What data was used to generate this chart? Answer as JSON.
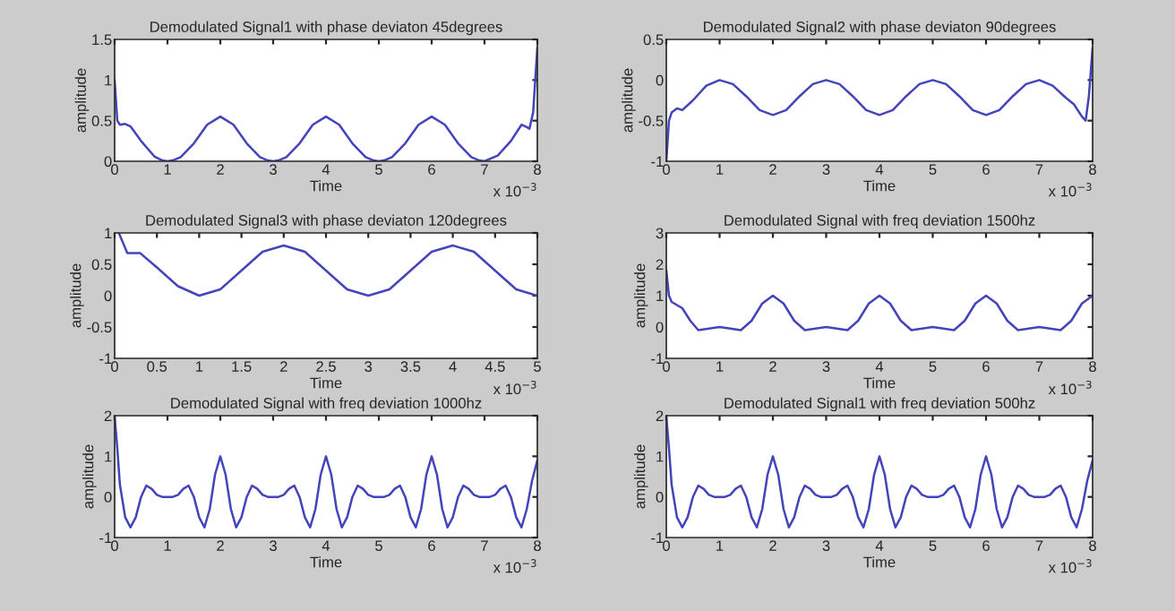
{
  "chart_data": [
    {
      "type": "line",
      "title": "Demodulated Signal1 with phase deviaton 45degrees",
      "xlabel": "Time",
      "ylabel": "amplitude",
      "xlim": [
        0,
        8
      ],
      "xticks": [
        0,
        1,
        2,
        3,
        4,
        5,
        6,
        7,
        8
      ],
      "ylim": [
        0,
        1.5
      ],
      "yticks": [
        0,
        0.5,
        1,
        1.5
      ],
      "annotations": [
        "x 10$^{−3}$"
      ],
      "grid": false,
      "legend": false,
      "series": [
        {
          "color": "#4444bb",
          "x": [
            0,
            0.05,
            0.1,
            0.2,
            0.3,
            0.5,
            0.75,
            0.9,
            1,
            1.1,
            1.25,
            1.5,
            1.75,
            2,
            2.25,
            2.5,
            2.75,
            2.9,
            3,
            3.1,
            3.25,
            3.5,
            3.75,
            4,
            4.25,
            4.5,
            4.75,
            4.9,
            5,
            5.1,
            5.25,
            5.5,
            5.75,
            6,
            6.25,
            6.5,
            6.75,
            6.9,
            7,
            7.25,
            7.5,
            7.7,
            7.8,
            7.85,
            7.92,
            8
          ],
          "values": [
            1.0,
            0.5,
            0.45,
            0.46,
            0.43,
            0.25,
            0.06,
            0.01,
            0,
            0.01,
            0.05,
            0.22,
            0.45,
            0.55,
            0.45,
            0.22,
            0.05,
            0.01,
            0,
            0.01,
            0.05,
            0.22,
            0.45,
            0.55,
            0.45,
            0.22,
            0.05,
            0.01,
            0,
            0.01,
            0.05,
            0.22,
            0.45,
            0.55,
            0.45,
            0.22,
            0.05,
            0.01,
            0,
            0.07,
            0.25,
            0.45,
            0.42,
            0.4,
            0.6,
            1.4
          ]
        }
      ]
    },
    {
      "type": "line",
      "title": "Demodulated Signal2 with phase deviaton 90degrees",
      "xlabel": "Time",
      "ylabel": "amplitude",
      "xlim": [
        0,
        8
      ],
      "xticks": [
        0,
        1,
        2,
        3,
        4,
        5,
        6,
        7,
        8
      ],
      "ylim": [
        -1,
        0.5
      ],
      "yticks": [
        -1,
        -0.5,
        0,
        0.5
      ],
      "annotations": [
        "x 10$^{−3}$"
      ],
      "grid": false,
      "legend": false,
      "series": [
        {
          "color": "#4444bb",
          "x": [
            0,
            0.05,
            0.1,
            0.2,
            0.3,
            0.5,
            0.75,
            1,
            1.25,
            1.5,
            1.75,
            2,
            2.25,
            2.5,
            2.75,
            3,
            3.25,
            3.5,
            3.75,
            4,
            4.25,
            4.5,
            4.75,
            5,
            5.25,
            5.5,
            5.75,
            6,
            6.25,
            6.5,
            6.75,
            7,
            7.25,
            7.5,
            7.65,
            7.8,
            7.87,
            7.93,
            8
          ],
          "values": [
            -1,
            -0.5,
            -0.4,
            -0.35,
            -0.37,
            -0.25,
            -0.07,
            0,
            -0.05,
            -0.2,
            -0.37,
            -0.43,
            -0.37,
            -0.2,
            -0.05,
            0,
            -0.05,
            -0.2,
            -0.37,
            -0.43,
            -0.37,
            -0.2,
            -0.05,
            0,
            -0.05,
            -0.2,
            -0.37,
            -0.43,
            -0.37,
            -0.2,
            -0.05,
            0,
            -0.07,
            -0.22,
            -0.3,
            -0.45,
            -0.5,
            -0.2,
            0.4
          ]
        }
      ]
    },
    {
      "type": "line",
      "title": "Demodulated Signal3 with phase deviaton 120degrees",
      "xlabel": "Time",
      "ylabel": "amplitude",
      "xlim": [
        0,
        5
      ],
      "xticks": [
        0,
        0.5,
        1,
        1.5,
        2,
        2.5,
        3,
        3.5,
        4,
        4.5,
        5
      ],
      "ylim": [
        -1,
        1
      ],
      "yticks": [
        -1,
        -0.5,
        0,
        0.5,
        1
      ],
      "annotations": [
        "x 10$^{−3}$"
      ],
      "grid": false,
      "legend": false,
      "series": [
        {
          "color": "#4444bb",
          "x": [
            0.05,
            0.15,
            0.3,
            0.5,
            0.75,
            1,
            1.25,
            1.5,
            1.75,
            2,
            2.25,
            2.5,
            2.75,
            3,
            3.25,
            3.5,
            3.75,
            4,
            4.25,
            4.5,
            4.75,
            5
          ],
          "values": [
            1,
            0.68,
            0.68,
            0.45,
            0.15,
            0,
            0.1,
            0.4,
            0.7,
            0.8,
            0.7,
            0.4,
            0.1,
            0,
            0.1,
            0.4,
            0.7,
            0.8,
            0.7,
            0.4,
            0.1,
            0
          ]
        }
      ]
    },
    {
      "type": "line",
      "title": "Demodulated Signal with freq deviation 1500hz",
      "xlabel": "Time",
      "ylabel": "amplitude",
      "xlim": [
        0,
        8
      ],
      "xticks": [
        0,
        1,
        2,
        3,
        4,
        5,
        6,
        7,
        8
      ],
      "ylim": [
        -1,
        3
      ],
      "yticks": [
        -1,
        0,
        1,
        2,
        3
      ],
      "annotations": [
        "x 10$^{−3}$"
      ],
      "grid": false,
      "legend": false,
      "series": [
        {
          "color": "#4444bb",
          "x": [
            0,
            0.05,
            0.1,
            0.3,
            0.45,
            0.6,
            0.8,
            1,
            1.2,
            1.4,
            1.6,
            1.8,
            2,
            2.2,
            2.4,
            2.6,
            2.8,
            3,
            3.2,
            3.4,
            3.6,
            3.8,
            4,
            4.2,
            4.4,
            4.6,
            4.8,
            5,
            5.2,
            5.4,
            5.6,
            5.8,
            6,
            6.2,
            6.4,
            6.6,
            6.8,
            7,
            7.2,
            7.4,
            7.6,
            7.8,
            8
          ],
          "values": [
            1.8,
            1.0,
            0.8,
            0.6,
            0.2,
            -0.1,
            -0.05,
            0,
            -0.05,
            -0.1,
            0.2,
            0.75,
            1,
            0.75,
            0.2,
            -0.1,
            -0.05,
            0,
            -0.05,
            -0.1,
            0.2,
            0.75,
            1,
            0.75,
            0.2,
            -0.1,
            -0.05,
            0,
            -0.05,
            -0.1,
            0.2,
            0.75,
            1,
            0.75,
            0.2,
            -0.1,
            -0.05,
            0,
            -0.05,
            -0.1,
            0.2,
            0.75,
            1
          ]
        }
      ]
    },
    {
      "type": "line",
      "title": "Demodulated Signal with freq deviation 1000hz",
      "xlabel": "Time",
      "ylabel": "amplitude",
      "xlim": [
        0,
        8
      ],
      "xticks": [
        0,
        1,
        2,
        3,
        4,
        5,
        6,
        7,
        8
      ],
      "ylim": [
        -1,
        2
      ],
      "yticks": [
        -1,
        0,
        1,
        2
      ],
      "annotations": [
        "x 10$^{−3}$"
      ],
      "grid": false,
      "legend": false,
      "series": [
        {
          "color": "#4444bb",
          "x": [
            0,
            0.05,
            0.1,
            0.2,
            0.3,
            0.4,
            0.5,
            0.6,
            0.7,
            0.8,
            0.9,
            1,
            1.1,
            1.2,
            1.3,
            1.4,
            1.5,
            1.6,
            1.7,
            1.8,
            1.9,
            2,
            2.1,
            2.2,
            2.3,
            2.4,
            2.5,
            2.6,
            2.7,
            2.8,
            2.9,
            3,
            3.1,
            3.2,
            3.3,
            3.4,
            3.5,
            3.6,
            3.7,
            3.8,
            3.9,
            4,
            4.1,
            4.2,
            4.3,
            4.4,
            4.5,
            4.6,
            4.7,
            4.8,
            4.9,
            5,
            5.1,
            5.2,
            5.3,
            5.4,
            5.5,
            5.6,
            5.7,
            5.8,
            5.9,
            6,
            6.1,
            6.2,
            6.3,
            6.4,
            6.5,
            6.6,
            6.7,
            6.8,
            6.9,
            7,
            7.1,
            7.2,
            7.3,
            7.4,
            7.5,
            7.6,
            7.7,
            7.8,
            7.9,
            8
          ],
          "values": [
            2,
            1.2,
            0.3,
            -0.5,
            -0.75,
            -0.5,
            0,
            0.28,
            0.2,
            0.05,
            0,
            0,
            0,
            0.05,
            0.2,
            0.28,
            0,
            -0.5,
            -0.75,
            -0.3,
            0.55,
            1,
            0.55,
            -0.3,
            -0.75,
            -0.5,
            0,
            0.28,
            0.2,
            0.05,
            0,
            0,
            0,
            0.05,
            0.2,
            0.28,
            0,
            -0.5,
            -0.75,
            -0.3,
            0.55,
            1,
            0.55,
            -0.3,
            -0.75,
            -0.5,
            0,
            0.28,
            0.2,
            0.05,
            0,
            0,
            0,
            0.05,
            0.2,
            0.28,
            0,
            -0.5,
            -0.75,
            -0.3,
            0.55,
            1,
            0.55,
            -0.3,
            -0.75,
            -0.5,
            0,
            0.28,
            0.2,
            0.05,
            0,
            0,
            0,
            0.05,
            0.2,
            0.28,
            0,
            -0.5,
            -0.75,
            -0.3,
            0.4,
            0.9
          ]
        }
      ]
    },
    {
      "type": "line",
      "title": "Demodulated Signal1 with freq deviation 500hz",
      "xlabel": "Time",
      "ylabel": "amplitude",
      "xlim": [
        0,
        8
      ],
      "xticks": [
        0,
        1,
        2,
        3,
        4,
        5,
        6,
        7,
        8
      ],
      "ylim": [
        -1,
        2
      ],
      "yticks": [
        -1,
        0,
        1,
        2
      ],
      "annotations": [
        "x 10$^{−3}$"
      ],
      "grid": false,
      "legend": false,
      "series": [
        {
          "color": "#4444bb",
          "x": [
            0,
            0.05,
            0.1,
            0.2,
            0.3,
            0.4,
            0.5,
            0.6,
            0.7,
            0.8,
            0.9,
            1,
            1.1,
            1.2,
            1.3,
            1.4,
            1.5,
            1.6,
            1.7,
            1.8,
            1.9,
            2,
            2.1,
            2.2,
            2.3,
            2.4,
            2.5,
            2.6,
            2.7,
            2.8,
            2.9,
            3,
            3.1,
            3.2,
            3.3,
            3.4,
            3.5,
            3.6,
            3.7,
            3.8,
            3.9,
            4,
            4.1,
            4.2,
            4.3,
            4.4,
            4.5,
            4.6,
            4.7,
            4.8,
            4.9,
            5,
            5.1,
            5.2,
            5.3,
            5.4,
            5.5,
            5.6,
            5.7,
            5.8,
            5.9,
            6,
            6.1,
            6.2,
            6.3,
            6.4,
            6.5,
            6.6,
            6.7,
            6.8,
            6.9,
            7,
            7.1,
            7.2,
            7.3,
            7.4,
            7.5,
            7.6,
            7.7,
            7.8,
            7.9,
            8
          ],
          "values": [
            2,
            1.2,
            0.3,
            -0.5,
            -0.75,
            -0.5,
            0,
            0.28,
            0.2,
            0.05,
            0,
            0,
            0,
            0.05,
            0.2,
            0.28,
            0,
            -0.5,
            -0.75,
            -0.3,
            0.55,
            1,
            0.55,
            -0.3,
            -0.75,
            -0.5,
            0,
            0.28,
            0.2,
            0.05,
            0,
            0,
            0,
            0.05,
            0.2,
            0.28,
            0,
            -0.5,
            -0.75,
            -0.3,
            0.55,
            1,
            0.55,
            -0.3,
            -0.75,
            -0.5,
            0,
            0.28,
            0.2,
            0.05,
            0,
            0,
            0,
            0.05,
            0.2,
            0.28,
            0,
            -0.5,
            -0.75,
            -0.3,
            0.55,
            1,
            0.55,
            -0.3,
            -0.75,
            -0.5,
            0,
            0.28,
            0.2,
            0.05,
            0,
            0,
            0,
            0.05,
            0.2,
            0.28,
            0,
            -0.5,
            -0.75,
            -0.3,
            0.4,
            0.9
          ]
        }
      ]
    }
  ]
}
